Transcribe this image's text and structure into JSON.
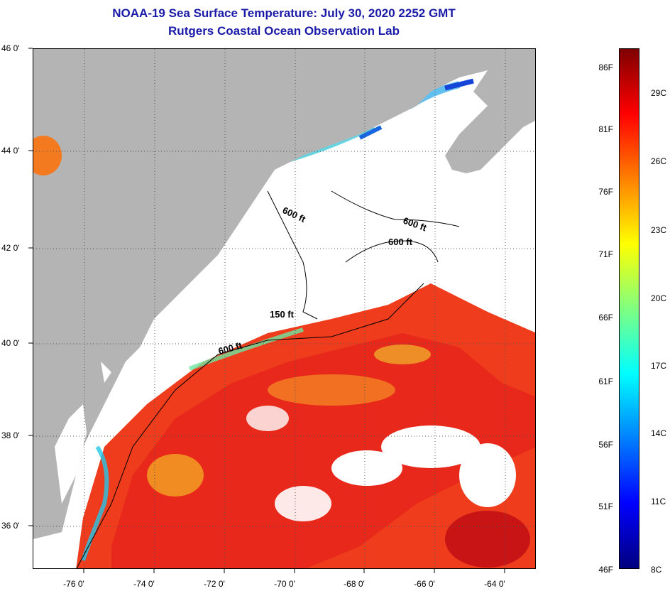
{
  "title": {
    "line1": "NOAA-19 Sea Surface Temperature:  July 30, 2020 2252 GMT",
    "line2": "Rutgers Coastal Ocean Observation Lab"
  },
  "map": {
    "lat_labels": [
      "46 0'",
      "44 0'",
      "42 0'",
      "40 0'",
      "38 0'",
      "36 0'"
    ],
    "lon_labels": [
      "-76 0'",
      "-74 0'",
      "-72 0'",
      "-70 0'",
      "-68 0'",
      "-66 0'",
      "-64 0'"
    ],
    "contour_labels": [
      "600 ft",
      "600 ft",
      "600 ft",
      "150 ft",
      "600 ft"
    ],
    "colors": {
      "land": "#b4b4b4",
      "cloud": "#ffffff",
      "warm_core": "#ee2b1a",
      "warm_edge": "#f5a020",
      "cool": "#22c8e8",
      "cold": "#1544d8"
    }
  },
  "colorbar": {
    "fahrenheit_labels": [
      "86F",
      "81F",
      "76F",
      "71F",
      "66F",
      "61F",
      "56F",
      "51F",
      "46F"
    ],
    "celsius_labels": [
      "29C",
      "26C",
      "23C",
      "20C",
      "17C",
      "14C",
      "11C",
      "8C"
    ],
    "range_f": [
      46,
      88
    ],
    "gradient": [
      "#00007f",
      "#0000ff",
      "#0080ff",
      "#00ffff",
      "#80ff80",
      "#ffff00",
      "#ff8000",
      "#ff0000",
      "#7f0000"
    ]
  }
}
